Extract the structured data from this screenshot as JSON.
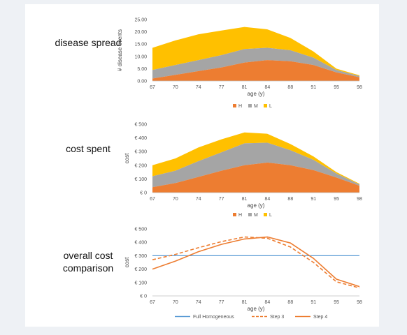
{
  "panels": {
    "p1_label": "disease spread",
    "p2_label": "cost spent",
    "p3_label_line1": "overall cost",
    "p3_label_line2": "comparison"
  },
  "colors": {
    "H": "#ed7d31",
    "M": "#a5a5a5",
    "L": "#ffc000",
    "line_homog": "#5b9bd5",
    "line_step": "#ed7d31"
  },
  "chart_data": [
    {
      "type": "area",
      "stacked": true,
      "title": "",
      "xlabel": "age (y)",
      "ylabel": "# disease events",
      "x_labels": [
        "67",
        "70",
        "74",
        "77",
        "81",
        "84",
        "88",
        "91",
        "95",
        "98"
      ],
      "y_ticks": [
        "0.00",
        "5.00",
        "10.00",
        "15.00",
        "20.00",
        "25.00"
      ],
      "ylim": [
        0,
        25
      ],
      "legend_position": "bottom",
      "series": [
        {
          "name": "H",
          "values": [
            1.0,
            2.5,
            4.0,
            5.5,
            7.5,
            8.5,
            8.0,
            6.5,
            3.5,
            1.5
          ]
        },
        {
          "name": "M",
          "values": [
            3.5,
            4.0,
            4.5,
            5.0,
            5.5,
            5.0,
            4.5,
            3.0,
            1.0,
            0.5
          ]
        },
        {
          "name": "L",
          "values": [
            9.0,
            10.0,
            10.5,
            10.0,
            9.0,
            7.5,
            5.0,
            2.5,
            0.5,
            0.3
          ]
        }
      ]
    },
    {
      "type": "area",
      "stacked": true,
      "title": "",
      "xlabel": "age (y)",
      "ylabel": "cost",
      "x_labels": [
        "67",
        "70",
        "74",
        "77",
        "81",
        "84",
        "88",
        "91",
        "95",
        "98"
      ],
      "y_ticks": [
        "€ 0",
        "€ 100",
        "€ 200",
        "€ 300",
        "€ 400",
        "€ 500"
      ],
      "ylim": [
        0,
        500
      ],
      "legend_position": "bottom",
      "series": [
        {
          "name": "H",
          "values": [
            40,
            70,
            115,
            160,
            200,
            220,
            200,
            165,
            110,
            50
          ]
        },
        {
          "name": "M",
          "values": [
            80,
            90,
            115,
            135,
            160,
            145,
            110,
            75,
            30,
            10
          ]
        },
        {
          "name": "L",
          "values": [
            80,
            90,
            100,
            95,
            80,
            65,
            45,
            25,
            10,
            5
          ]
        }
      ]
    },
    {
      "type": "line",
      "title": "",
      "xlabel": "age (y)",
      "ylabel": "cost",
      "x_labels": [
        "67",
        "70",
        "74",
        "77",
        "81",
        "84",
        "88",
        "91",
        "95",
        "98"
      ],
      "y_ticks": [
        "€ 0",
        "€ 100",
        "€ 200",
        "€ 300",
        "€ 400",
        "€ 500"
      ],
      "ylim": [
        0,
        500
      ],
      "legend_position": "bottom",
      "series": [
        {
          "name": "Full Homogeneous",
          "style": "solid",
          "values": [
            300,
            300,
            300,
            300,
            300,
            300,
            300,
            300,
            300,
            300
          ]
        },
        {
          "name": "Step 3",
          "style": "dashed",
          "values": [
            270,
            310,
            360,
            405,
            440,
            430,
            365,
            250,
            105,
            60
          ]
        },
        {
          "name": "Step 4",
          "style": "solid",
          "values": [
            200,
            260,
            330,
            385,
            425,
            440,
            395,
            280,
            125,
            70
          ]
        }
      ]
    }
  ]
}
